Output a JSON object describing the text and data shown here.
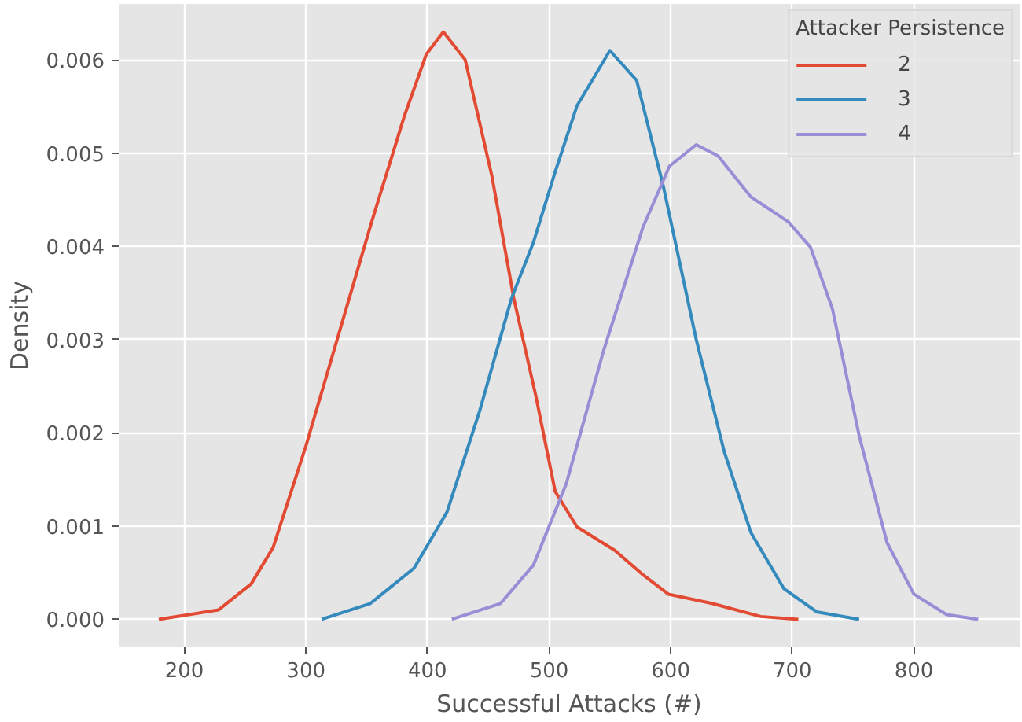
{
  "chart_data": {
    "type": "line",
    "xlabel": "Successful Attacks (#)",
    "ylabel": "Density",
    "legend_title": "Attacker Persistence",
    "xlim": [
      146,
      887
    ],
    "ylim": [
      -0.0003,
      0.0066
    ],
    "xticks": [
      200,
      300,
      400,
      500,
      600,
      700,
      800
    ],
    "yticks": [
      {
        "value": 0,
        "label": "0.000"
      },
      {
        "value": 0.001,
        "label": "0.001"
      },
      {
        "value": 0.002,
        "label": "0.002"
      },
      {
        "value": 0.003,
        "label": "0.003"
      },
      {
        "value": 0.004,
        "label": "0.004"
      },
      {
        "value": 0.005,
        "label": "0.005"
      },
      {
        "value": 0.006,
        "label": "0.006"
      }
    ],
    "grid": true,
    "legend": "top right",
    "line_style": "solid",
    "series": [
      {
        "name": "2",
        "color": "#e24a33",
        "x": [
          179,
          228,
          255,
          273,
          300,
          327,
          354,
          381,
          399,
          413,
          431,
          453,
          471,
          489,
          505,
          523,
          554,
          576,
          598,
          634,
          674,
          705
        ],
        "values": [
          0,
          0.0001,
          0.00038,
          0.00077,
          0.00186,
          0.00306,
          0.00426,
          0.0054,
          0.00606,
          0.0063,
          0.006,
          0.00475,
          0.00344,
          0.0024,
          0.00137,
          0.00099,
          0.00074,
          0.00049,
          0.00027,
          0.00017,
          3e-05,
          0
        ]
      },
      {
        "name": "3",
        "color": "#348abd",
        "x": [
          313,
          353,
          389,
          416,
          443,
          469,
          487,
          505,
          523,
          550,
          572,
          594,
          621,
          644,
          666,
          693,
          720,
          755
        ],
        "values": [
          0,
          0.00017,
          0.00055,
          0.00115,
          0.00224,
          0.00344,
          0.00404,
          0.0048,
          0.00551,
          0.0061,
          0.00578,
          0.00464,
          0.003,
          0.0018,
          0.00093,
          0.00033,
          8e-05,
          0
        ]
      },
      {
        "name": "4",
        "color": "#988ed5",
        "x": [
          420,
          460,
          487,
          514,
          545,
          577,
          599,
          621,
          639,
          666,
          697,
          715,
          733,
          755,
          778,
          800,
          827,
          853
        ],
        "values": [
          0,
          0.00017,
          0.00058,
          0.00145,
          0.00289,
          0.0042,
          0.00486,
          0.00509,
          0.00497,
          0.00453,
          0.00426,
          0.00399,
          0.00333,
          0.00197,
          0.00082,
          0.00027,
          5e-05,
          0
        ]
      }
    ]
  }
}
